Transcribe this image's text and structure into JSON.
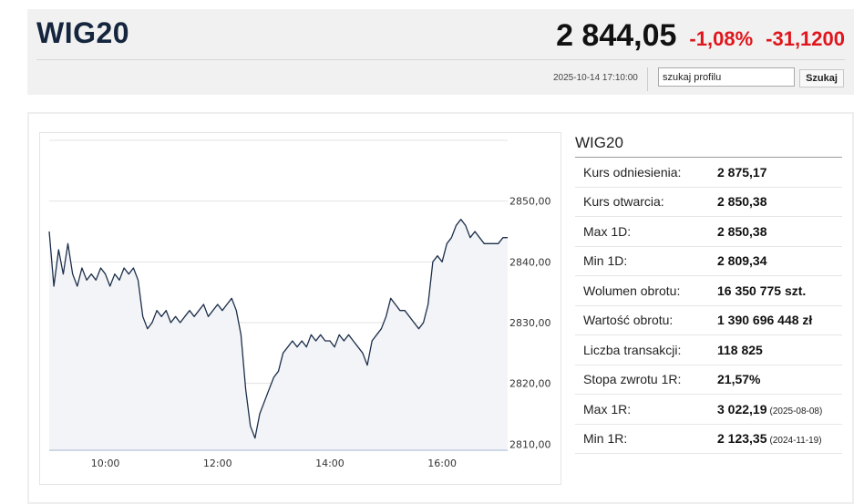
{
  "header": {
    "title": "WIG20",
    "price": "2 844,05",
    "change_pct": "-1,08%",
    "change_abs": "-31,1200",
    "datetime": "2025-10-14 17:10:00",
    "search_value": "szukaj profilu",
    "search_button": "Szukaj",
    "negative_color": "#e0161c"
  },
  "chart_data": {
    "type": "area",
    "title": "",
    "xlabel": "",
    "ylabel": "",
    "x_ticks": [
      "10:00",
      "12:00",
      "14:00",
      "16:00"
    ],
    "y_ticks": [
      "2810,00",
      "2820,00",
      "2830,00",
      "2840,00",
      "2850,00"
    ],
    "ylim": [
      2809,
      2860
    ],
    "xlim": [
      "09:00",
      "17:10"
    ],
    "y_axis_position": "right",
    "grid": true,
    "line_color": "#1c2e4a",
    "fill_color": "#f2f4f7",
    "series": [
      {
        "x": [
          "09:00",
          "09:05",
          "09:10",
          "09:15",
          "09:20",
          "09:25",
          "09:30",
          "09:35",
          "09:40",
          "09:45",
          "09:50",
          "09:55",
          "10:00",
          "10:05",
          "10:10",
          "10:15",
          "10:20",
          "10:25",
          "10:30",
          "10:35",
          "10:40",
          "10:45",
          "10:50",
          "10:55",
          "11:00",
          "11:05",
          "11:10",
          "11:15",
          "11:20",
          "11:25",
          "11:30",
          "11:35",
          "11:40",
          "11:45",
          "11:50",
          "11:55",
          "12:00",
          "12:05",
          "12:10",
          "12:15",
          "12:20",
          "12:25",
          "12:30",
          "12:35",
          "12:40",
          "12:45",
          "12:50",
          "12:55",
          "13:00",
          "13:05",
          "13:10",
          "13:15",
          "13:20",
          "13:25",
          "13:30",
          "13:35",
          "13:40",
          "13:45",
          "13:50",
          "13:55",
          "14:00",
          "14:05",
          "14:10",
          "14:15",
          "14:20",
          "14:25",
          "14:30",
          "14:35",
          "14:40",
          "14:45",
          "14:50",
          "14:55",
          "15:00",
          "15:05",
          "15:10",
          "15:15",
          "15:20",
          "15:25",
          "15:30",
          "15:35",
          "15:40",
          "15:45",
          "15:50",
          "15:55",
          "16:00",
          "16:05",
          "16:10",
          "16:15",
          "16:20",
          "16:25",
          "16:30",
          "16:35",
          "16:40",
          "16:45",
          "16:50",
          "16:55",
          "17:00",
          "17:05",
          "17:10"
        ],
        "values": [
          2845,
          2836,
          2842,
          2838,
          2843,
          2838,
          2836,
          2839,
          2837,
          2838,
          2837,
          2839,
          2838,
          2836,
          2838,
          2837,
          2839,
          2838,
          2839,
          2837,
          2831,
          2829,
          2830,
          2832,
          2831,
          2832,
          2830,
          2831,
          2830,
          2831,
          2832,
          2831,
          2832,
          2833,
          2831,
          2832,
          2833,
          2832,
          2833,
          2834,
          2832,
          2828,
          2819,
          2813,
          2811,
          2815,
          2817,
          2819,
          2821,
          2822,
          2825,
          2826,
          2827,
          2826,
          2827,
          2826,
          2828,
          2827,
          2828,
          2827,
          2827,
          2826,
          2828,
          2827,
          2828,
          2827,
          2826,
          2825,
          2823,
          2827,
          2828,
          2829,
          2831,
          2834,
          2833,
          2832,
          2832,
          2831,
          2830,
          2829,
          2830,
          2833,
          2840,
          2841,
          2840,
          2843,
          2844,
          2846,
          2847,
          2846,
          2844,
          2845,
          2844,
          2843,
          2843,
          2843,
          2843,
          2844,
          2844
        ]
      }
    ]
  },
  "stats": {
    "title": "WIG20",
    "rows": [
      {
        "label": "Kurs odniesienia:",
        "value": "2 875,17",
        "note": ""
      },
      {
        "label": "Kurs otwarcia:",
        "value": "2 850,38",
        "note": ""
      },
      {
        "label": "Max 1D:",
        "value": "2 850,38",
        "note": ""
      },
      {
        "label": "Min 1D:",
        "value": "2 809,34",
        "note": ""
      },
      {
        "label": "Wolumen obrotu:",
        "value": "16 350 775 szt.",
        "note": ""
      },
      {
        "label": "Wartość obrotu:",
        "value": "1 390 696 448 zł",
        "note": ""
      },
      {
        "label": "Liczba transakcji:",
        "value": "118 825",
        "note": ""
      },
      {
        "label": "Stopa zwrotu 1R:",
        "value": "21,57%",
        "note": ""
      },
      {
        "label": "Max 1R:",
        "value": "3 022,19",
        "note": "(2025-08-08)"
      },
      {
        "label": "Min 1R:",
        "value": "2 123,35",
        "note": "(2024-11-19)"
      }
    ]
  }
}
